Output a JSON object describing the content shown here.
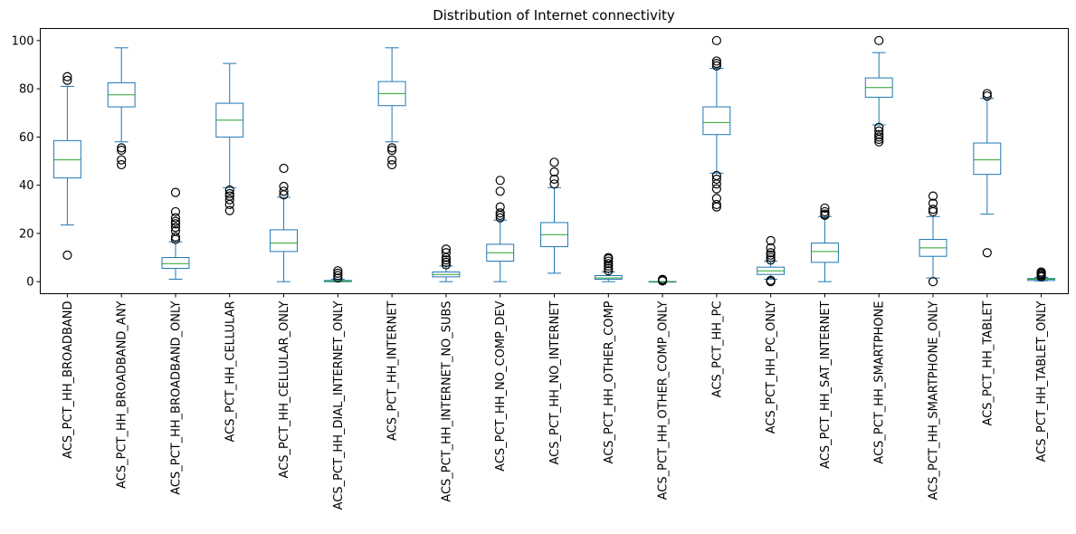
{
  "chart_data": {
    "type": "box",
    "title": "Distribution of Internet connectivity",
    "xlabel": "",
    "ylabel": "",
    "ylim": [
      -5,
      105
    ],
    "yticks": [
      0,
      20,
      40,
      60,
      80,
      100
    ],
    "grid": false,
    "colors": {
      "box": "#1f77b4",
      "median": "#2ca02c",
      "outlier": "#000000"
    },
    "boxes": [
      {
        "label": "ACS_PCT_HH_BROADBAND",
        "whisker_low": 23.5,
        "q1": 43,
        "median": 50.5,
        "q3": 58.5,
        "whisker_high": 81,
        "outliers": [
          11,
          83.5,
          85
        ]
      },
      {
        "label": "ACS_PCT_HH_BROADBAND_ANY",
        "whisker_low": 58,
        "q1": 72.5,
        "median": 77.5,
        "q3": 82.5,
        "whisker_high": 97,
        "outliers": [
          48.5,
          50.5,
          54.5,
          55.5
        ]
      },
      {
        "label": "ACS_PCT_HH_BROADBAND_ONLY",
        "whisker_low": 1,
        "q1": 5.5,
        "median": 7.5,
        "q3": 10,
        "whisker_high": 16.5,
        "outliers": [
          17.5,
          18.5,
          21,
          22.5,
          24,
          25,
          26.5,
          29,
          37
        ]
      },
      {
        "label": "ACS_PCT_HH_CELLULAR",
        "whisker_low": 39,
        "q1": 60,
        "median": 67,
        "q3": 74,
        "whisker_high": 90.5,
        "outliers": [
          29.5,
          32,
          34,
          35.5,
          36.5,
          38
        ]
      },
      {
        "label": "ACS_PCT_HH_CELLULAR_ONLY",
        "whisker_low": 0,
        "q1": 12.5,
        "median": 16,
        "q3": 21.5,
        "whisker_high": 35,
        "outliers": [
          36,
          37.5,
          39.5,
          47
        ]
      },
      {
        "label": "ACS_PCT_HH_DIAL_INTERNET_ONLY",
        "whisker_low": 0,
        "q1": 0,
        "median": 0.2,
        "q3": 0.5,
        "whisker_high": 1,
        "outliers": [
          1.5,
          2.5,
          3.5,
          4.5
        ]
      },
      {
        "label": "ACS_PCT_HH_INTERNET",
        "whisker_low": 58,
        "q1": 73,
        "median": 78,
        "q3": 83,
        "whisker_high": 97,
        "outliers": [
          48.5,
          50.5,
          54.5,
          55.5
        ]
      },
      {
        "label": "ACS_PCT_HH_INTERNET_NO_SUBS",
        "whisker_low": 0,
        "q1": 2,
        "median": 3,
        "q3": 4,
        "whisker_high": 6.5,
        "outliers": [
          7,
          8,
          9,
          10,
          12,
          13.5
        ]
      },
      {
        "label": "ACS_PCT_HH_NO_COMP_DEV",
        "whisker_low": 0,
        "q1": 8.5,
        "median": 12,
        "q3": 15.5,
        "whisker_high": 25.5,
        "outliers": [
          26.5,
          27.5,
          28.5,
          31,
          37.5,
          42
        ]
      },
      {
        "label": "ACS_PCT_HH_NO_INTERNET",
        "whisker_low": 3.5,
        "q1": 14.5,
        "median": 19.5,
        "q3": 24.5,
        "whisker_high": 39,
        "outliers": [
          40.5,
          42.5,
          45.5,
          49.5
        ]
      },
      {
        "label": "ACS_PCT_HH_OTHER_COMP",
        "whisker_low": 0,
        "q1": 1,
        "median": 1.5,
        "q3": 2.5,
        "whisker_high": 4,
        "outliers": [
          4.5,
          5.5,
          6.5,
          7.5,
          8.5,
          9.5,
          10
        ]
      },
      {
        "label": "ACS_PCT_HH_OTHER_COMP_ONLY",
        "whisker_low": 0,
        "q1": 0,
        "median": 0,
        "q3": 0,
        "whisker_high": 0,
        "outliers": [
          0.3,
          0.6,
          0.9
        ]
      },
      {
        "label": "ACS_PCT_HH_PC",
        "whisker_low": 45,
        "q1": 61,
        "median": 66,
        "q3": 72.5,
        "whisker_high": 88.5,
        "outliers": [
          31,
          32,
          34.5,
          38.5,
          40.5,
          42.5,
          44,
          89.5,
          90.5,
          91.5,
          100
        ]
      },
      {
        "label": "ACS_PCT_HH_PC_ONLY",
        "whisker_low": 1,
        "q1": 3,
        "median": 4.5,
        "q3": 6,
        "whisker_high": 8.5,
        "outliers": [
          0,
          0.5,
          9,
          10,
          11,
          12,
          14,
          17
        ]
      },
      {
        "label": "ACS_PCT_HH_SAT_INTERNET",
        "whisker_low": 0,
        "q1": 8,
        "median": 12.5,
        "q3": 16,
        "whisker_high": 27,
        "outliers": [
          27.5,
          28,
          29,
          30.5
        ]
      },
      {
        "label": "ACS_PCT_HH_SMARTPHONE",
        "whisker_low": 65,
        "q1": 76.5,
        "median": 80.5,
        "q3": 84.5,
        "whisker_high": 95,
        "outliers": [
          58,
          59,
          60,
          61,
          62.5,
          64,
          100
        ]
      },
      {
        "label": "ACS_PCT_HH_SMARTPHONE_ONLY",
        "whisker_low": 1.5,
        "q1": 10.5,
        "median": 14,
        "q3": 17.5,
        "whisker_high": 27,
        "outliers": [
          0,
          29,
          30,
          32.5,
          35.5
        ]
      },
      {
        "label": "ACS_PCT_HH_TABLET",
        "whisker_low": 28,
        "q1": 44.5,
        "median": 50.5,
        "q3": 57.5,
        "whisker_high": 76,
        "outliers": [
          12,
          77,
          78
        ]
      },
      {
        "label": "ACS_PCT_HH_TABLET_ONLY",
        "whisker_low": 0.3,
        "q1": 0.5,
        "median": 1,
        "q3": 1.3,
        "whisker_high": 1.8,
        "outliers": [
          2,
          2.5,
          3,
          3.5,
          4
        ]
      }
    ]
  }
}
